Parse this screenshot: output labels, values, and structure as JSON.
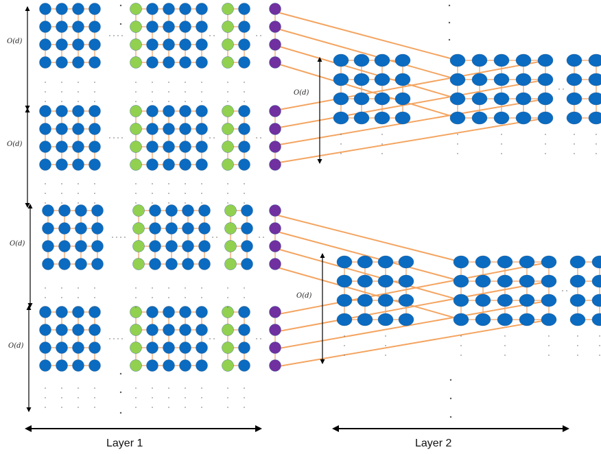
{
  "labels": {
    "order_d": "O(d)",
    "layer1": "Layer 1",
    "layer2": "Layer 2"
  },
  "colors": {
    "blue_node": "#0b6bc0",
    "green_node": "#92d050",
    "purple_node": "#7030a0",
    "edge_orange": "#f0a060",
    "cross_edge_orange": "#f4a460",
    "arrow": "#000000",
    "dots": "#555555"
  },
  "layer1": {
    "block_rows": 4,
    "columns_per_block": {
      "left_grid": 4,
      "middle_green": 1,
      "middle_grid": 4,
      "right_green": 1,
      "right_grid": 1,
      "purple": 1
    },
    "nodes_per_column": 4
  },
  "layer2": {
    "groups": 2,
    "grid_columns": 4,
    "middle_columns": 5,
    "right_columns": 2,
    "rows": 4
  }
}
